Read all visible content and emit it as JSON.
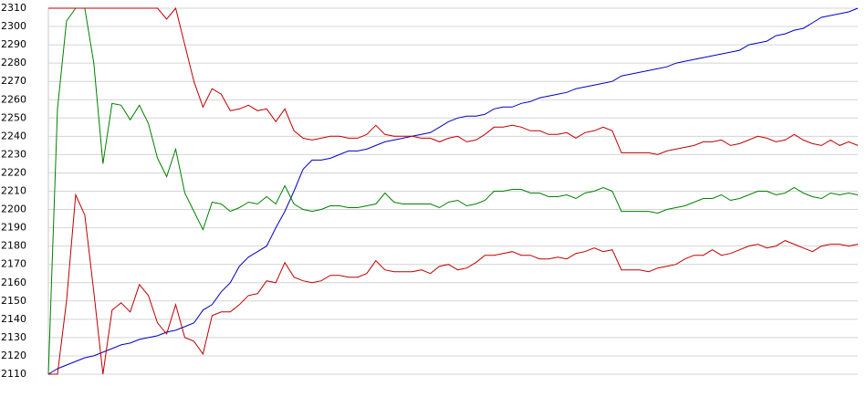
{
  "chart_data": {
    "type": "line",
    "categories": [
      null,
      null,
      null,
      null,
      null,
      null,
      null,
      null,
      null,
      null,
      null,
      null,
      null,
      null,
      null,
      null,
      null,
      null,
      null,
      null,
      null,
      null,
      null,
      null,
      null,
      null,
      null,
      null,
      null,
      null,
      null,
      null,
      null,
      null,
      null,
      null,
      null,
      null,
      null,
      null,
      null,
      null,
      null,
      null,
      null,
      null,
      null,
      null,
      null,
      null,
      null,
      null,
      null,
      null,
      null,
      null,
      null,
      null,
      null,
      null,
      null,
      null,
      null,
      null,
      null,
      null,
      null,
      null,
      null,
      null,
      null,
      null,
      null,
      null,
      null,
      null,
      null,
      null,
      null,
      null,
      null,
      null,
      null,
      null,
      null,
      null,
      null,
      null,
      null,
      null
    ],
    "series": [
      {
        "color": "#0000c8",
        "values": [
          2110,
          2113,
          2115,
          2117,
          2119,
          2120,
          2122,
          2124,
          2126,
          2127,
          2129,
          2130,
          2131,
          2133,
          2134,
          2136,
          2138,
          2145,
          2148,
          2155,
          2160,
          2169,
          2174,
          2177,
          2180,
          2190,
          2199,
          2210,
          2222,
          2227,
          2227,
          2228,
          2230,
          2232,
          2232,
          2233,
          2235,
          2237,
          2238,
          2239,
          2240,
          2241,
          2242,
          2245,
          2248,
          2250,
          2251,
          2251,
          2252,
          2255,
          2256,
          2256,
          2258,
          2259,
          2261,
          2262,
          2263,
          2264,
          2266,
          2267,
          2268,
          2269,
          2270,
          2273,
          2274,
          2275,
          2276,
          2277,
          2278,
          2280,
          2281,
          2282,
          2283,
          2284,
          2285,
          2286,
          2287,
          2290,
          2291,
          2292,
          2295,
          2296,
          2298,
          2299,
          2302,
          2305,
          2306,
          2307,
          2308,
          2310
        ]
      },
      {
        "color": "#008000",
        "values": [
          2110,
          2255,
          2303,
          2310,
          2310,
          2280,
          2225,
          2258,
          2257,
          2249,
          2257,
          2247,
          2228,
          2218,
          2233,
          2209,
          2199,
          2189,
          2204,
          2203,
          2199,
          2201,
          2204,
          2203,
          2207,
          2203,
          2213,
          2203,
          2200,
          2199,
          2200,
          2202,
          2202,
          2201,
          2201,
          2202,
          2203,
          2209,
          2204,
          2203,
          2203,
          2203,
          2203,
          2201,
          2204,
          2205,
          2202,
          2203,
          2205,
          2210,
          2210,
          2211,
          2211,
          2209,
          2209,
          2207,
          2207,
          2208,
          2206,
          2209,
          2210,
          2212,
          2210,
          2199,
          2199,
          2199,
          2199,
          2198,
          2200,
          2201,
          2202,
          2204,
          2206,
          2206,
          2208,
          2205,
          2206,
          2208,
          2210,
          2210,
          2208,
          2209,
          2212,
          2209,
          2207,
          2206,
          2209,
          2208,
          2209,
          2208
        ]
      },
      {
        "color": "#c00000",
        "values": [
          2310,
          2310,
          2310,
          2310,
          2310,
          2310,
          2310,
          2310,
          2310,
          2310,
          2310,
          2310,
          2310,
          2304,
          2310,
          2290,
          2270,
          2256,
          2266,
          2263,
          2254,
          2255,
          2257,
          2254,
          2255,
          2248,
          2255,
          2243,
          2239,
          2238,
          2239,
          2240,
          2240,
          2239,
          2239,
          2241,
          2246,
          2241,
          2240,
          2240,
          2240,
          2239,
          2239,
          2237,
          2239,
          2240,
          2237,
          2238,
          2241,
          2245,
          2245,
          2246,
          2245,
          2243,
          2243,
          2241,
          2241,
          2242,
          2239,
          2242,
          2243,
          2245,
          2243,
          2231,
          2231,
          2231,
          2231,
          2230,
          2232,
          2233,
          2234,
          2235,
          2237,
          2237,
          2238,
          2235,
          2236,
          2238,
          2240,
          2239,
          2237,
          2238,
          2241,
          2238,
          2236,
          2235,
          2238,
          2235,
          2237,
          2235
        ]
      },
      {
        "color": "#c00000",
        "values": [
          2110,
          2110,
          2150,
          2208,
          2197,
          2155,
          2110,
          2145,
          2149,
          2144,
          2159,
          2153,
          2138,
          2132,
          2148,
          2130,
          2128,
          2121,
          2142,
          2144,
          2144,
          2148,
          2153,
          2154,
          2161,
          2160,
          2171,
          2163,
          2161,
          2160,
          2161,
          2164,
          2164,
          2163,
          2163,
          2165,
          2172,
          2167,
          2166,
          2166,
          2166,
          2167,
          2165,
          2169,
          2170,
          2167,
          2168,
          2171,
          2175,
          2175,
          2176,
          2177,
          2175,
          2175,
          2173,
          2173,
          2174,
          2173,
          2176,
          2177,
          2179,
          2177,
          2178,
          2167,
          2167,
          2167,
          2166,
          2168,
          2169,
          2170,
          2173,
          2175,
          2175,
          2178,
          2175,
          2176,
          2178,
          2180,
          2181,
          2179,
          2180,
          2183,
          2181,
          2179,
          2177,
          2180,
          2181,
          2181,
          2180,
          2181
        ]
      }
    ],
    "ylim": [
      2110,
      2310
    ],
    "yticks": [
      2110,
      2120,
      2130,
      2140,
      2150,
      2160,
      2170,
      2180,
      2190,
      2200,
      2210,
      2220,
      2230,
      2240,
      2250,
      2260,
      2270,
      2280,
      2290,
      2300,
      2310
    ],
    "grid": true
  }
}
